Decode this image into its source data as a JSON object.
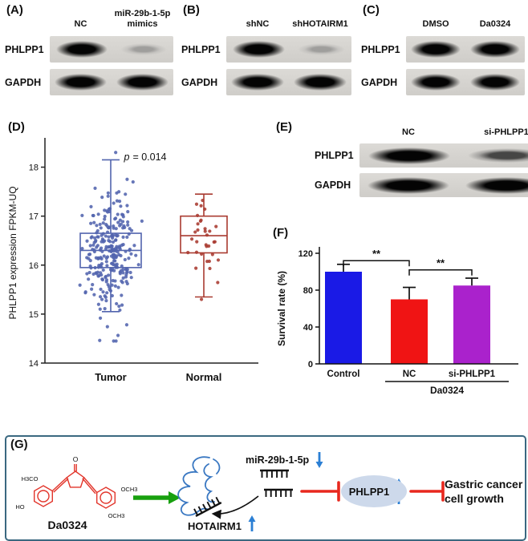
{
  "blot_panels": [
    {
      "label": "(A)",
      "lane_labels": [
        [
          "NC"
        ],
        [
          "miR-29b-1-5p",
          "mimics"
        ]
      ],
      "rows": [
        {
          "protein": "PHLPP1",
          "bands": [
            "strong",
            "faint"
          ]
        },
        {
          "protein": "GAPDH",
          "bands": [
            "strong",
            "strong"
          ]
        }
      ]
    },
    {
      "label": "(B)",
      "lane_labels": [
        [
          "shNC"
        ],
        [
          "shHOTAIRM1"
        ]
      ],
      "rows": [
        {
          "protein": "PHLPP1",
          "bands": [
            "strong",
            "faint"
          ]
        },
        {
          "protein": "GAPDH",
          "bands": [
            "strong",
            "strong"
          ]
        }
      ]
    },
    {
      "label": "(C)",
      "lane_labels": [
        [
          "DMSO"
        ],
        [
          "Da0324"
        ]
      ],
      "rows": [
        {
          "protein": "PHLPP1",
          "bands": [
            "strong",
            "strong"
          ]
        },
        {
          "protein": "GAPDH",
          "bands": [
            "strong",
            "strong"
          ]
        }
      ]
    },
    {
      "label": "(E)",
      "lane_labels": [
        [
          "NC"
        ],
        [
          "si-PHLPP1"
        ]
      ],
      "rows": [
        {
          "protein": "PHLPP1",
          "bands": [
            "strong",
            "medium"
          ]
        },
        {
          "protein": "GAPDH",
          "bands": [
            "strong",
            "strong"
          ]
        }
      ]
    }
  ],
  "chart_data": [
    {
      "panel": "(D)",
      "type": "scatter",
      "title": "",
      "annotation_italic": "p",
      "annotation_rest": "= 0.014",
      "ylabel": "PHLPP1 expression FPKM-UQ",
      "categories": [
        "Tumor",
        "Normal"
      ],
      "ylim": [
        14,
        18.5
      ],
      "yticks": [
        14,
        15,
        16,
        17,
        18
      ],
      "legend": "none",
      "series": [
        {
          "name": "Tumor",
          "color": "#5264ae",
          "n": 270,
          "mean": 16.3,
          "sd": 0.62,
          "min": 14.45,
          "max": 18.3,
          "box": {
            "q1": 15.95,
            "median": 16.3,
            "q3": 16.65,
            "lo": 15.05,
            "hi": 18.15
          }
        },
        {
          "name": "Normal",
          "color": "#a93a30",
          "n": 33,
          "mean": 16.6,
          "sd": 0.45,
          "min": 15.3,
          "max": 17.5,
          "box": {
            "q1": 16.25,
            "median": 16.6,
            "q3": 17.0,
            "lo": 15.35,
            "hi": 17.45
          }
        }
      ]
    },
    {
      "panel": "(F)",
      "type": "bar",
      "ylabel": "Survival rate (%)",
      "categories": [
        "Control",
        "NC",
        "si-PHLPP1"
      ],
      "values": [
        100,
        70,
        85
      ],
      "errors": [
        8,
        13,
        8
      ],
      "colors": [
        "#1a1ae6",
        "#f01414",
        "#aa22cc"
      ],
      "ylim": [
        0,
        120
      ],
      "yticks": [
        0,
        40,
        80,
        120
      ],
      "sig": [
        {
          "from": 0,
          "to": 1,
          "label": "**",
          "height": 112
        },
        {
          "from": 1,
          "to": 2,
          "label": "**",
          "height": 102
        }
      ],
      "group": {
        "label": "Da0324",
        "from": 1,
        "to": 2
      }
    }
  ],
  "diagram": {
    "panel": "(G)",
    "compound": "Da0324",
    "chem_labels": [
      "H3CO",
      "HO",
      "O",
      "OCH3",
      "OCH3"
    ],
    "lncrna": "HOTAIRM1",
    "lncrna_direction": "up",
    "mirna": "miR-29b-1-5p",
    "mirna_direction": "down",
    "target": "PHLPP1",
    "target_direction": "up",
    "outcome_line1": "Gastric cancer",
    "outcome_line2": "cell growth",
    "colors": {
      "compound": "#e2342a",
      "activation": "#18a00f",
      "inhibition": "#e8281e",
      "rna": "#3a78c2",
      "arrow": "#2b7fd4",
      "target_fill": "#cdd9eb",
      "border": "#3a6880"
    }
  }
}
